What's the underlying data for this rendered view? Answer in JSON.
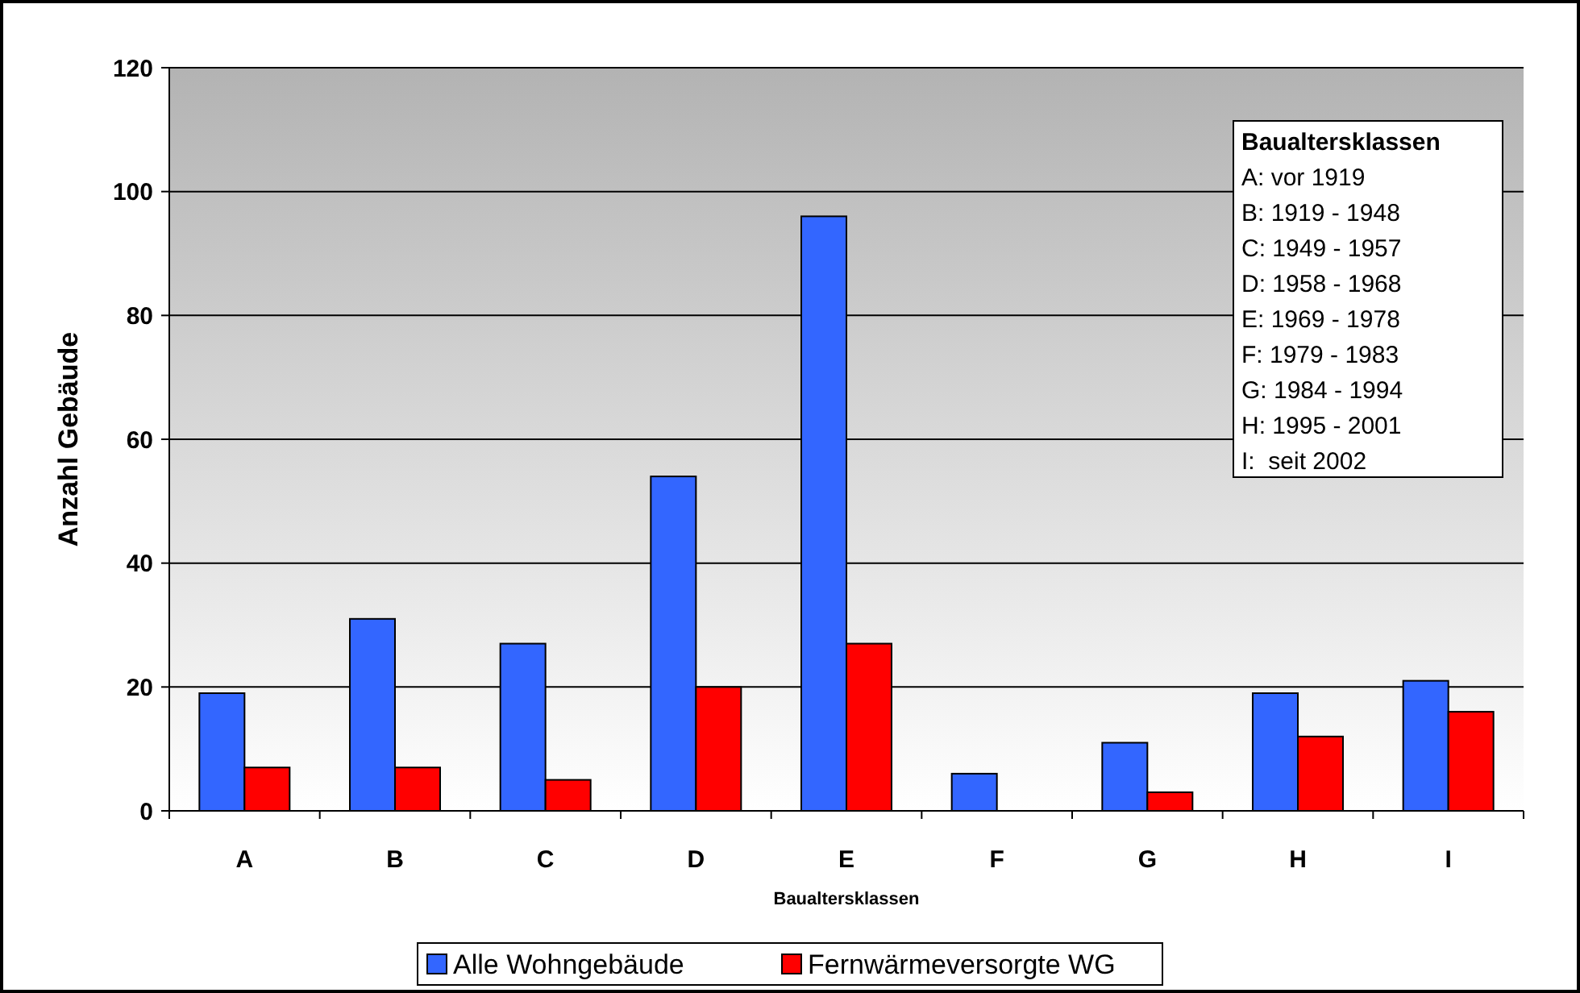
{
  "chart_data": {
    "type": "bar",
    "xlabel": "Baualtersklassen",
    "ylabel": "Anzahl Gebäude",
    "categories": [
      "A",
      "B",
      "C",
      "D",
      "E",
      "F",
      "G",
      "H",
      "I"
    ],
    "series": [
      {
        "name": "Alle Wohngebäude",
        "color": "#3366ff",
        "values": [
          19,
          31,
          27,
          54,
          96,
          6,
          11,
          19,
          21
        ]
      },
      {
        "name": "Fernwärmeversorgte WG",
        "color": "#ff0000",
        "values": [
          7,
          7,
          5,
          20,
          27,
          0,
          3,
          12,
          16
        ]
      }
    ],
    "ylim": [
      0,
      120
    ],
    "yticks": [
      0,
      20,
      40,
      60,
      80,
      100,
      120
    ],
    "grid": "y",
    "legend": "bottom",
    "annotations": [
      "Baualtersklassen",
      "A: vor 1919",
      "B: 1919 - 1948",
      "C: 1949 - 1957",
      "D: 1958 - 1968",
      "E: 1969 - 1978",
      "F: 1979 - 1983",
      "G: 1984 - 1994",
      "H: 1995 - 2001",
      "I:  seit 2002"
    ]
  }
}
